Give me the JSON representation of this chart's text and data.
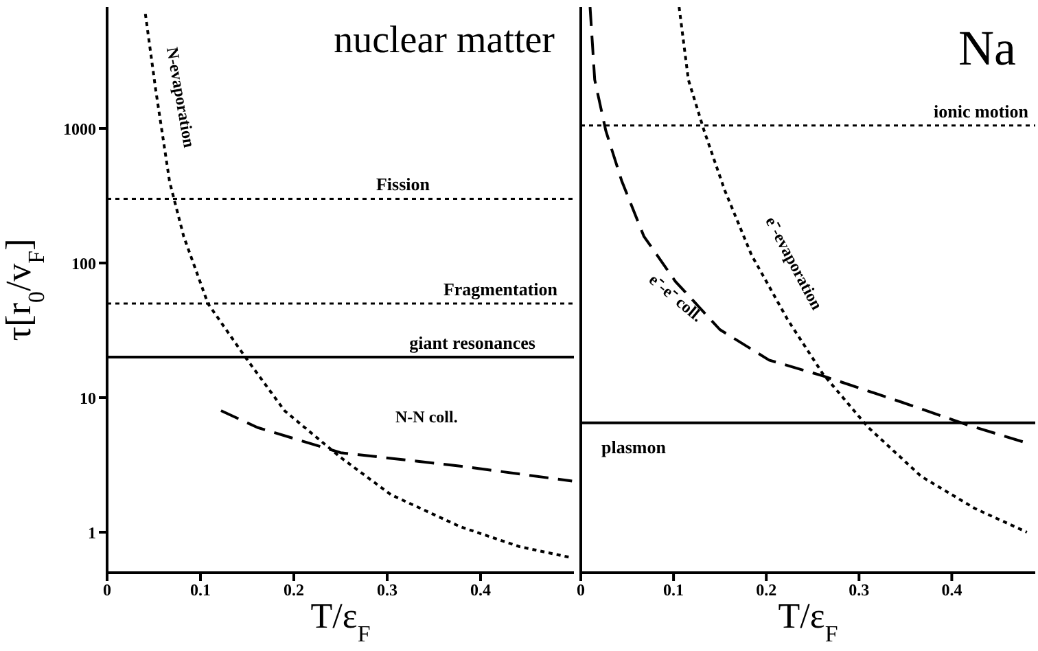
{
  "chart_data": [
    {
      "type": "line",
      "title": "nuclear matter",
      "xlabel": "T/ε$_{F}$",
      "ylabel": "τ[r$_{0}$/v$_{F}$]",
      "log": "y",
      "xlim": [
        0,
        0.5
      ],
      "xticks": [
        0,
        0.1,
        0.2,
        0.3,
        0.4
      ],
      "ylim": [
        0.5,
        8000
      ],
      "yticks": [
        1,
        10,
        100,
        1000
      ],
      "marker": "none",
      "series": [
        {
          "name": "N-evaporation",
          "color": "#000000",
          "line_style": "dotted",
          "x": [
            0.041,
            0.052,
            0.067,
            0.082,
            0.108,
            0.148,
            0.19,
            0.25,
            0.304,
            0.378,
            0.442,
            0.496
          ],
          "values": [
            7100,
            1950,
            400,
            158,
            50,
            20,
            8,
            3.6,
            1.9,
            1.1,
            0.78,
            0.65
          ]
        },
        {
          "name": "N-N coll.",
          "color": "#000000",
          "line_style": "dashed",
          "x": [
            0.122,
            0.161,
            0.25,
            0.378,
            0.498
          ],
          "values": [
            8,
            6,
            3.9,
            3.1,
            2.4
          ]
        }
      ],
      "ref_lines": [
        {
          "axis": "y",
          "value": 300,
          "label": "Fission",
          "line_style": "dotted",
          "color": "#000000"
        },
        {
          "axis": "y",
          "value": 50,
          "label": "Fragmentation",
          "line_style": "dotted",
          "color": "#000000"
        },
        {
          "axis": "y",
          "value": 20,
          "label": "giant resonances",
          "line_style": "solid",
          "color": "#000000"
        }
      ]
    },
    {
      "type": "line",
      "title": "Na",
      "xlabel": "T/ε$_{F}$",
      "log": "y",
      "xlim": [
        0,
        0.49
      ],
      "xticks": [
        0,
        0.1,
        0.2,
        0.3,
        0.4
      ],
      "ylim": [
        0.5,
        8000
      ],
      "yticks": [
        1,
        10,
        100,
        1000
      ],
      "tick_labels": "x",
      "marker": "none",
      "series": [
        {
          "name": "e⁻-e⁻ coll.",
          "color": "#000000",
          "line_style": "dashed",
          "x": [
            0.01,
            0.015,
            0.027,
            0.044,
            0.068,
            0.102,
            0.15,
            0.203,
            0.261,
            0.343,
            0.416,
            0.481
          ],
          "values": [
            8000,
            2300,
            960,
            410,
            158,
            73,
            32,
            19,
            14.5,
            9.4,
            6.3,
            4.6
          ]
        },
        {
          "name": "e⁻-evaporation",
          "color": "#000000",
          "line_style": "dotted",
          "x": [
            0.106,
            0.116,
            0.133,
            0.155,
            0.184,
            0.223,
            0.261,
            0.31,
            0.367,
            0.425,
            0.481
          ],
          "values": [
            8000,
            2300,
            960,
            350,
            115,
            38,
            15,
            6,
            2.6,
            1.5,
            1.0
          ]
        }
      ],
      "ref_lines": [
        {
          "axis": "y",
          "value": 1050,
          "label": "ionic motion",
          "line_style": "dotted",
          "color": "#000000"
        },
        {
          "axis": "y",
          "value": 6.5,
          "label": "plasmon",
          "line_style": "solid",
          "color": "#000000"
        }
      ]
    }
  ]
}
